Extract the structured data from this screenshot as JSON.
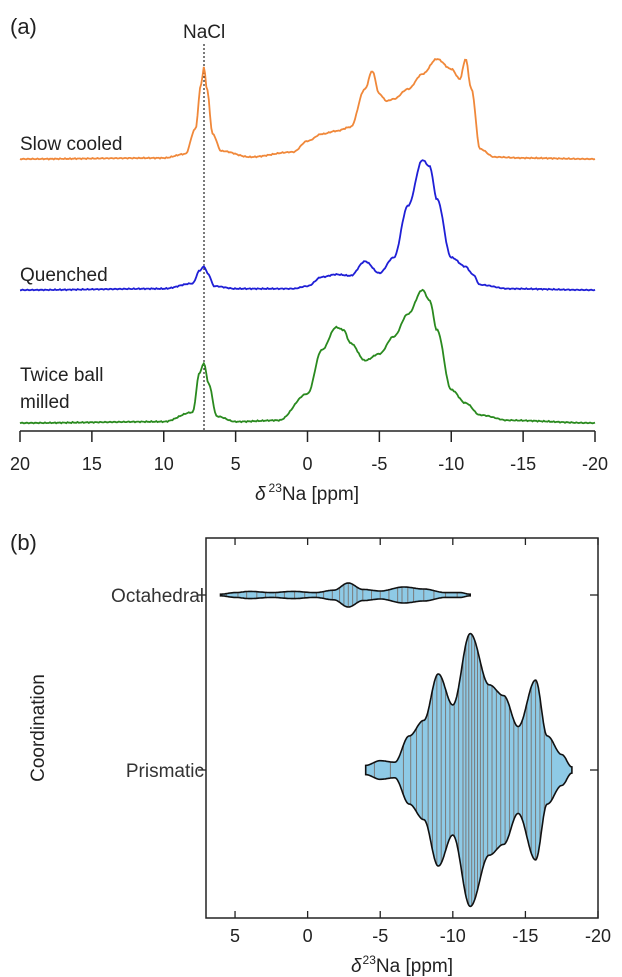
{
  "chart_data": [
    {
      "panel": "(a)",
      "type": "line",
      "xlabel": "δ ²³Na [ppm]",
      "xlim": [
        20,
        -20
      ],
      "xticks": [
        "20",
        "15",
        "10",
        "5",
        "0",
        "-5",
        "-10",
        "-15",
        "-20"
      ],
      "reference_label": "NaCl",
      "reference_x": 7.2,
      "series": [
        {
          "name": "Slow cooled",
          "color": "#f0883a",
          "x": [
            20,
            10,
            8.5,
            7.8,
            7.4,
            7.2,
            7.0,
            6.6,
            6,
            4,
            1,
            0,
            -1,
            -2,
            -3,
            -4,
            -4.5,
            -5,
            -5.5,
            -6,
            -7,
            -8,
            -9,
            -10,
            -10.6,
            -11,
            -11.4,
            -12,
            -13,
            -15,
            -20
          ],
          "y": [
            0,
            0.01,
            0.05,
            0.3,
            0.75,
            0.92,
            0.7,
            0.25,
            0.08,
            0.02,
            0.07,
            0.18,
            0.25,
            0.28,
            0.32,
            0.7,
            0.88,
            0.65,
            0.58,
            0.6,
            0.7,
            0.85,
            1.0,
            0.9,
            0.8,
            1.0,
            0.7,
            0.1,
            0.02,
            0.01,
            0
          ]
        },
        {
          "name": "Quenched",
          "color": "#1f1fd6",
          "x": [
            20,
            10,
            8,
            7.5,
            7.2,
            6.9,
            6.5,
            5,
            1,
            0,
            -1,
            -2,
            -3,
            -4,
            -5,
            -6,
            -7,
            -8,
            -8.5,
            -9,
            -10,
            -11,
            -11.5,
            -12,
            -14,
            -20
          ],
          "y": [
            0,
            0.01,
            0.05,
            0.15,
            0.18,
            0.12,
            0.03,
            0.01,
            0.01,
            0.03,
            0.1,
            0.12,
            0.11,
            0.22,
            0.13,
            0.25,
            0.65,
            1.0,
            0.95,
            0.7,
            0.25,
            0.18,
            0.12,
            0.04,
            0.01,
            0
          ]
        },
        {
          "name": "Twice ball milled",
          "color": "#2a8a1f",
          "x": [
            20,
            10,
            8,
            7.5,
            7.2,
            6.9,
            6.3,
            5,
            2,
            0,
            -1,
            -2,
            -2.5,
            -3,
            -4,
            -5,
            -6,
            -7,
            -8,
            -8.5,
            -9,
            -10,
            -11,
            -12,
            -14,
            -20
          ],
          "y": [
            0,
            0.01,
            0.08,
            0.38,
            0.45,
            0.3,
            0.05,
            0.01,
            0.02,
            0.22,
            0.55,
            0.72,
            0.7,
            0.6,
            0.47,
            0.52,
            0.65,
            0.82,
            1.0,
            0.92,
            0.7,
            0.25,
            0.15,
            0.06,
            0.02,
            0
          ]
        }
      ]
    },
    {
      "panel": "(b)",
      "type": "violin",
      "xlabel": "δ²³Na [ppm]",
      "ylabel": "Coordination",
      "xlim": [
        7,
        -20
      ],
      "xticks": [
        "5",
        "0",
        "-5",
        "-10",
        "-15",
        "-20"
      ],
      "fill_color": "#8ecae6",
      "categories": [
        {
          "name": "Octahedral",
          "width_profile": {
            "x": [
              6.0,
              5,
              4,
              2.5,
              1,
              -0.5,
              -1.8,
              -2.8,
              -3.8,
              -5,
              -6.6,
              -8,
              -9.5,
              -10.5,
              -11.2
            ],
            "halfwidth": [
              0.02,
              0.06,
              0.09,
              0.06,
              0.09,
              0.06,
              0.12,
              0.3,
              0.14,
              0.1,
              0.2,
              0.15,
              0.06,
              0.06,
              0.02
            ]
          },
          "points": [
            5.6,
            4.8,
            4.2,
            3.5,
            2.9,
            2.2,
            1.6,
            0.9,
            0.2,
            -0.6,
            -1.1,
            -1.7,
            -2.2,
            -2.5,
            -2.8,
            -3.1,
            -3.4,
            -3.8,
            -4.4,
            -5.0,
            -5.6,
            -6.2,
            -6.5,
            -6.9,
            -7.3,
            -8.0,
            -8.7,
            -9.5,
            -10.3
          ]
        },
        {
          "name": "Prismatic",
          "width_profile": {
            "x": [
              -4.0,
              -5,
              -6,
              -7,
              -8,
              -9,
              -10,
              -11.2,
              -12.5,
              -13.5,
              -14.5,
              -15.7,
              -16.5,
              -17.5,
              -18.2
            ],
            "halfwidth": [
              0.03,
              0.06,
              0.05,
              0.22,
              0.32,
              0.62,
              0.42,
              0.88,
              0.55,
              0.48,
              0.28,
              0.58,
              0.22,
              0.1,
              0.02
            ]
          },
          "points": [
            -4.6,
            -5.7,
            -6.6,
            -7.1,
            -7.5,
            -7.9,
            -8.3,
            -8.6,
            -8.9,
            -9.2,
            -9.5,
            -9.8,
            -10.1,
            -10.4,
            -10.7,
            -10.9,
            -11.1,
            -11.3,
            -11.5,
            -11.7,
            -11.9,
            -12.1,
            -12.4,
            -12.7,
            -13.0,
            -13.3,
            -13.6,
            -13.9,
            -14.2,
            -14.5,
            -14.8,
            -15.1,
            -15.4,
            -15.7,
            -16.0,
            -16.3,
            -16.8
          ]
        }
      ]
    }
  ]
}
